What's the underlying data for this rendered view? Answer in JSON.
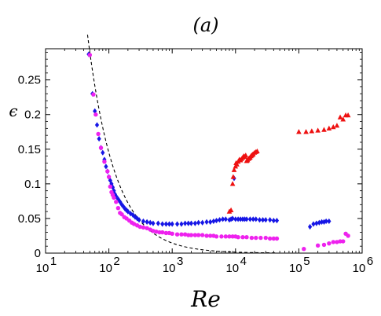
{
  "chart_data": {
    "type": "scatter",
    "title": "(a)",
    "xlabel": "Re",
    "ylabel": "ϵ",
    "x_scale": "log",
    "xlim": [
      10,
      1000000
    ],
    "ylim": [
      0,
      0.295
    ],
    "x_ticks": [
      {
        "value": 10,
        "base": "10",
        "exp": "1"
      },
      {
        "value": 100,
        "base": "10",
        "exp": "2"
      },
      {
        "value": 1000,
        "base": "10",
        "exp": "3"
      },
      {
        "value": 10000,
        "base": "10",
        "exp": "4"
      },
      {
        "value": 100000,
        "base": "10",
        "exp": "5"
      },
      {
        "value": 1000000,
        "base": "10",
        "exp": "6"
      }
    ],
    "y_ticks": [
      "0",
      "0.05",
      "0.1",
      "0.15",
      "0.2",
      "0.25"
    ],
    "y_tick_values": [
      0,
      0.05,
      0.1,
      0.15,
      0.2,
      0.25
    ],
    "reference_curve": {
      "style": "dashed",
      "color": "#000000",
      "formula": "epsilon = 14.5 / Re",
      "x_range": [
        46,
        45000
      ]
    },
    "series": [
      {
        "marker": "diamond",
        "color": "#1616e6",
        "points": [
          [
            48,
            0.287
          ],
          [
            55,
            0.23
          ],
          [
            60,
            0.205
          ],
          [
            65,
            0.185
          ],
          [
            70,
            0.165
          ],
          [
            75,
            0.152
          ],
          [
            80,
            0.145
          ],
          [
            85,
            0.135
          ],
          [
            90,
            0.125
          ],
          [
            95,
            0.118
          ],
          [
            100,
            0.11
          ],
          [
            105,
            0.105
          ],
          [
            110,
            0.1
          ],
          [
            115,
            0.095
          ],
          [
            120,
            0.09
          ],
          [
            125,
            0.085
          ],
          [
            130,
            0.082
          ],
          [
            140,
            0.078
          ],
          [
            150,
            0.074
          ],
          [
            160,
            0.07
          ],
          [
            170,
            0.067
          ],
          [
            180,
            0.064
          ],
          [
            190,
            0.062
          ],
          [
            200,
            0.06
          ],
          [
            220,
            0.057
          ],
          [
            240,
            0.055
          ],
          [
            260,
            0.052
          ],
          [
            280,
            0.05
          ],
          [
            300,
            0.048
          ],
          [
            350,
            0.046
          ],
          [
            400,
            0.045
          ],
          [
            450,
            0.044
          ],
          [
            500,
            0.043
          ],
          [
            600,
            0.043
          ],
          [
            700,
            0.042
          ],
          [
            800,
            0.042
          ],
          [
            900,
            0.042
          ],
          [
            1000,
            0.042
          ],
          [
            1200,
            0.042
          ],
          [
            1400,
            0.042
          ],
          [
            1600,
            0.043
          ],
          [
            1800,
            0.043
          ],
          [
            2000,
            0.043
          ],
          [
            2300,
            0.043
          ],
          [
            2600,
            0.044
          ],
          [
            3000,
            0.044
          ],
          [
            3500,
            0.045
          ],
          [
            4000,
            0.045
          ],
          [
            4500,
            0.046
          ],
          [
            5000,
            0.047
          ],
          [
            5600,
            0.048
          ],
          [
            6300,
            0.049
          ],
          [
            7000,
            0.049
          ],
          [
            8000,
            0.048
          ],
          [
            8500,
            0.049
          ],
          [
            9000,
            0.05
          ],
          [
            9500,
            0.108
          ],
          [
            10000,
            0.049
          ],
          [
            11000,
            0.049
          ],
          [
            12000,
            0.049
          ],
          [
            13000,
            0.049
          ],
          [
            14000,
            0.049
          ],
          [
            15000,
            0.049
          ],
          [
            17000,
            0.049
          ],
          [
            19000,
            0.049
          ],
          [
            21000,
            0.049
          ],
          [
            24000,
            0.048
          ],
          [
            27000,
            0.048
          ],
          [
            30000,
            0.048
          ],
          [
            35000,
            0.048
          ],
          [
            40000,
            0.047
          ],
          [
            45000,
            0.047
          ],
          [
            150000,
            0.038
          ],
          [
            170000,
            0.042
          ],
          [
            190000,
            0.043
          ],
          [
            210000,
            0.044
          ],
          [
            230000,
            0.045
          ],
          [
            250000,
            0.045
          ],
          [
            270000,
            0.046
          ],
          [
            300000,
            0.046
          ]
        ]
      },
      {
        "marker": "circle",
        "color": "#ee22ee",
        "points": [
          [
            50,
            0.286
          ],
          [
            57,
            0.229
          ],
          [
            62,
            0.2
          ],
          [
            68,
            0.172
          ],
          [
            75,
            0.152
          ],
          [
            85,
            0.132
          ],
          [
            95,
            0.118
          ],
          [
            100,
            0.11
          ],
          [
            105,
            0.096
          ],
          [
            110,
            0.088
          ],
          [
            115,
            0.084
          ],
          [
            120,
            0.08
          ],
          [
            130,
            0.074
          ],
          [
            140,
            0.065
          ],
          [
            150,
            0.058
          ],
          [
            160,
            0.056
          ],
          [
            175,
            0.052
          ],
          [
            190,
            0.05
          ],
          [
            210,
            0.047
          ],
          [
            230,
            0.044
          ],
          [
            250,
            0.042
          ],
          [
            280,
            0.04
          ],
          [
            310,
            0.038
          ],
          [
            350,
            0.037
          ],
          [
            400,
            0.036
          ],
          [
            450,
            0.034
          ],
          [
            500,
            0.032
          ],
          [
            560,
            0.031
          ],
          [
            630,
            0.03
          ],
          [
            700,
            0.03
          ],
          [
            800,
            0.029
          ],
          [
            900,
            0.029
          ],
          [
            1000,
            0.028
          ],
          [
            1200,
            0.027
          ],
          [
            1400,
            0.027
          ],
          [
            1600,
            0.027
          ],
          [
            1800,
            0.026
          ],
          [
            2000,
            0.026
          ],
          [
            2300,
            0.026
          ],
          [
            2600,
            0.026
          ],
          [
            3000,
            0.026
          ],
          [
            3500,
            0.025
          ],
          [
            4000,
            0.025
          ],
          [
            4500,
            0.025
          ],
          [
            5000,
            0.024
          ],
          [
            6000,
            0.024
          ],
          [
            7000,
            0.024
          ],
          [
            8000,
            0.024
          ],
          [
            9000,
            0.024
          ],
          [
            10000,
            0.024
          ],
          [
            11000,
            0.023
          ],
          [
            13000,
            0.023
          ],
          [
            15000,
            0.023
          ],
          [
            18000,
            0.022
          ],
          [
            21000,
            0.022
          ],
          [
            25000,
            0.022
          ],
          [
            30000,
            0.022
          ],
          [
            35000,
            0.021
          ],
          [
            40000,
            0.021
          ],
          [
            45000,
            0.021
          ],
          [
            120000,
            0.006
          ],
          [
            200000,
            0.011
          ],
          [
            250000,
            0.012
          ],
          [
            300000,
            0.014
          ],
          [
            350000,
            0.016
          ],
          [
            400000,
            0.016
          ],
          [
            450000,
            0.017
          ],
          [
            500000,
            0.017
          ],
          [
            550000,
            0.028
          ],
          [
            600000,
            0.025
          ]
        ]
      },
      {
        "marker": "triangle",
        "color": "#ee1111",
        "points": [
          [
            8000,
            0.06
          ],
          [
            8500,
            0.062
          ],
          [
            9000,
            0.1
          ],
          [
            9200,
            0.11
          ],
          [
            9500,
            0.12
          ],
          [
            10000,
            0.125
          ],
          [
            10200,
            0.13
          ],
          [
            10500,
            0.128
          ],
          [
            11000,
            0.132
          ],
          [
            11500,
            0.135
          ],
          [
            12000,
            0.134
          ],
          [
            12500,
            0.136
          ],
          [
            13000,
            0.138
          ],
          [
            13500,
            0.14
          ],
          [
            14000,
            0.139
          ],
          [
            14500,
            0.141
          ],
          [
            15000,
            0.133
          ],
          [
            15500,
            0.134
          ],
          [
            16000,
            0.136
          ],
          [
            16500,
            0.137
          ],
          [
            17000,
            0.138
          ],
          [
            17500,
            0.14
          ],
          [
            18000,
            0.141
          ],
          [
            18500,
            0.142
          ],
          [
            19000,
            0.143
          ],
          [
            20000,
            0.145
          ],
          [
            21000,
            0.146
          ],
          [
            22000,
            0.147
          ],
          [
            100000,
            0.175
          ],
          [
            130000,
            0.175
          ],
          [
            160000,
            0.176
          ],
          [
            200000,
            0.177
          ],
          [
            250000,
            0.178
          ],
          [
            300000,
            0.18
          ],
          [
            350000,
            0.182
          ],
          [
            400000,
            0.184
          ],
          [
            450000,
            0.196
          ],
          [
            500000,
            0.193
          ],
          [
            550000,
            0.199
          ],
          [
            600000,
            0.199
          ]
        ]
      }
    ]
  }
}
